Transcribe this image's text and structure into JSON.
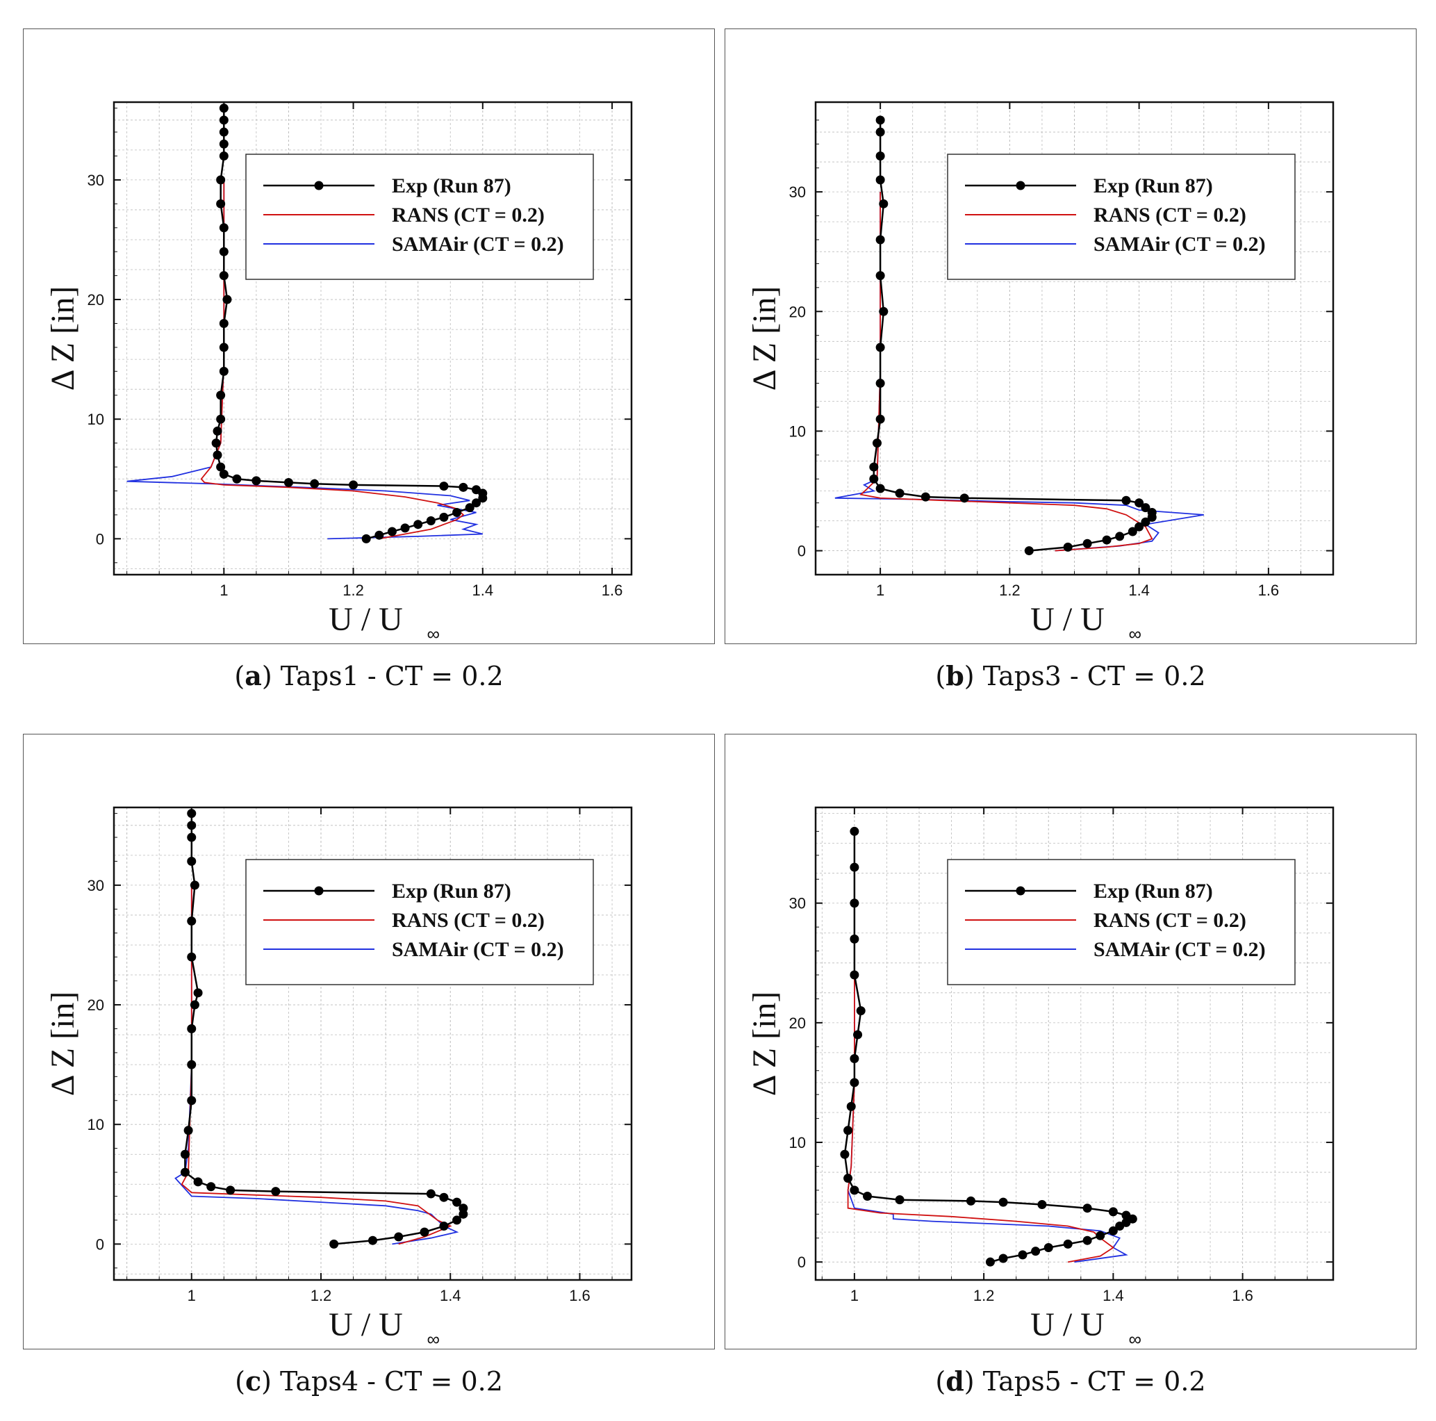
{
  "chart_data": [
    {
      "type": "line",
      "panel_letter": "a",
      "caption_text": "Taps1 - CT = 0.2",
      "xlabel": "U / U",
      "xlabel_sub": "∞",
      "ylabel": "Δ Z [in]",
      "xlim": [
        0.83,
        1.63
      ],
      "ylim": [
        -3,
        36.5
      ],
      "xticks": [
        1,
        1.2,
        1.4,
        1.6
      ],
      "xtick_labels": [
        "1",
        "1.2",
        "1.4",
        "1.6"
      ],
      "yticks": [
        0,
        10,
        20,
        30
      ],
      "ytick_labels": [
        "0",
        "10",
        "20",
        "30"
      ],
      "grid": true,
      "legend_position": "top-right",
      "series": [
        {
          "name": "Exp (Run 87)",
          "color": "#000000",
          "marker": "circle",
          "x": [
            1.22,
            1.24,
            1.26,
            1.28,
            1.3,
            1.32,
            1.34,
            1.36,
            1.38,
            1.39,
            1.4,
            1.4,
            1.39,
            1.37,
            1.34,
            1.2,
            1.14,
            1.1,
            1.05,
            1.02,
            1.0,
            0.995,
            0.99,
            0.988,
            0.99,
            0.995,
            0.995,
            1.0,
            1.0,
            1.0,
            1.005,
            1.0,
            1.0,
            1.0,
            0.995,
            0.995,
            1.0,
            1.0,
            1.0,
            1.0,
            1.0
          ],
          "y": [
            0,
            0.3,
            0.6,
            0.9,
            1.2,
            1.5,
            1.8,
            2.2,
            2.6,
            3.0,
            3.4,
            3.8,
            4.1,
            4.3,
            4.4,
            4.5,
            4.6,
            4.7,
            4.85,
            5.0,
            5.4,
            6.0,
            7.0,
            8.0,
            9.0,
            10.0,
            12.0,
            14.0,
            16.0,
            18.0,
            20.0,
            22.0,
            24.0,
            26.0,
            28.0,
            30.0,
            32.0,
            33.0,
            34.0,
            35.0,
            36.0
          ]
        },
        {
          "name": "RANS (CT = 0.2)",
          "color": "#d01010",
          "marker": "none",
          "x": [
            1.24,
            1.28,
            1.32,
            1.34,
            1.36,
            1.37,
            1.36,
            1.33,
            1.28,
            1.2,
            1.1,
            1.0,
            0.97,
            0.965,
            0.98,
            0.995,
            1.0,
            1.0
          ],
          "y": [
            0,
            0.4,
            0.8,
            1.2,
            1.6,
            2.0,
            2.5,
            3.0,
            3.5,
            4.0,
            4.3,
            4.5,
            4.7,
            5.0,
            6.0,
            8.0,
            15.0,
            30.0
          ]
        },
        {
          "name": "SAMAir (CT = 0.2)",
          "color": "#2030e0",
          "marker": "none",
          "x": [
            1.16,
            1.3,
            1.4,
            1.37,
            1.39,
            1.35,
            1.39,
            1.33,
            1.38,
            1.35,
            1.25,
            1.12,
            0.98,
            0.85,
            0.92,
            0.98,
            0.995,
            1.0,
            1.0
          ],
          "y": [
            0,
            0.2,
            0.4,
            0.8,
            1.2,
            1.6,
            2.2,
            2.8,
            3.2,
            3.6,
            4.0,
            4.3,
            4.6,
            4.8,
            5.2,
            6.0,
            8.0,
            15.0,
            30.0
          ]
        }
      ]
    },
    {
      "type": "line",
      "panel_letter": "b",
      "caption_text": "Taps3 - CT = 0.2",
      "xlabel": "U / U",
      "xlabel_sub": "∞",
      "ylabel": "Δ Z [in]",
      "xlim": [
        0.9,
        1.7
      ],
      "ylim": [
        -2,
        37.5
      ],
      "xticks": [
        1,
        1.2,
        1.4,
        1.6
      ],
      "xtick_labels": [
        "1",
        "1.2",
        "1.4",
        "1.6"
      ],
      "yticks": [
        0,
        10,
        20,
        30
      ],
      "ytick_labels": [
        "0",
        "10",
        "20",
        "30"
      ],
      "grid": true,
      "legend_position": "top-right",
      "series": [
        {
          "name": "Exp (Run 87)",
          "color": "#000000",
          "marker": "circle",
          "x": [
            1.23,
            1.29,
            1.32,
            1.35,
            1.37,
            1.39,
            1.4,
            1.41,
            1.42,
            1.42,
            1.41,
            1.4,
            1.38,
            1.13,
            1.07,
            1.03,
            1.0,
            0.99,
            0.99,
            0.995,
            1.0,
            1.0,
            1.0,
            1.005,
            1.0,
            1.0,
            1.005,
            1.0,
            1.0,
            1.0,
            1.0
          ],
          "y": [
            0,
            0.3,
            0.6,
            0.9,
            1.2,
            1.6,
            2.0,
            2.4,
            2.8,
            3.2,
            3.6,
            4.0,
            4.2,
            4.4,
            4.5,
            4.8,
            5.2,
            6.0,
            7.0,
            9.0,
            11.0,
            14.0,
            17.0,
            20.0,
            23.0,
            26.0,
            29.0,
            31.0,
            33.0,
            35.0,
            36.0
          ]
        },
        {
          "name": "RANS (CT = 0.2)",
          "color": "#d01010",
          "marker": "none",
          "x": [
            1.27,
            1.35,
            1.4,
            1.42,
            1.41,
            1.38,
            1.35,
            1.3,
            1.2,
            1.1,
            1.0,
            0.97,
            0.98,
            0.995,
            1.0,
            1.0
          ],
          "y": [
            0,
            0.3,
            0.6,
            1.0,
            2.0,
            3.0,
            3.5,
            3.8,
            4.0,
            4.2,
            4.4,
            4.7,
            5.2,
            6.0,
            15.0,
            30.0
          ]
        },
        {
          "name": "SAMAir (CT = 0.2)",
          "color": "#2030e0",
          "marker": "none",
          "x": [
            1.27,
            1.37,
            1.42,
            1.43,
            1.41,
            1.5,
            1.4,
            1.38,
            1.3,
            1.2,
            1.05,
            0.93,
            0.99,
            0.975,
            0.995,
            1.0,
            1.0
          ],
          "y": [
            0,
            0.4,
            0.8,
            1.5,
            2.2,
            3.0,
            3.4,
            3.8,
            4.0,
            4.1,
            4.3,
            4.4,
            5.0,
            5.5,
            6.0,
            15.0,
            30.0
          ]
        }
      ]
    },
    {
      "type": "line",
      "panel_letter": "c",
      "caption_text": "Taps4 - CT = 0.2",
      "xlabel": "U / U",
      "xlabel_sub": "∞",
      "ylabel": "Δ Z [in]",
      "xlim": [
        0.88,
        1.68
      ],
      "ylim": [
        -3,
        36.5
      ],
      "xticks": [
        1,
        1.2,
        1.4,
        1.6
      ],
      "xtick_labels": [
        "1",
        "1.2",
        "1.4",
        "1.6"
      ],
      "yticks": [
        0,
        10,
        20,
        30
      ],
      "ytick_labels": [
        "0",
        "10",
        "20",
        "30"
      ],
      "grid": true,
      "legend_position": "top-right",
      "series": [
        {
          "name": "Exp (Run 87)",
          "color": "#000000",
          "marker": "circle",
          "x": [
            1.22,
            1.28,
            1.32,
            1.36,
            1.39,
            1.41,
            1.42,
            1.42,
            1.41,
            1.39,
            1.37,
            1.13,
            1.06,
            1.03,
            1.01,
            0.99,
            0.99,
            0.995,
            1.0,
            1.0,
            1.0,
            1.005,
            1.01,
            1.0,
            1.0,
            1.005,
            1.0,
            1.0,
            1.0,
            1.0
          ],
          "y": [
            0,
            0.3,
            0.6,
            1.0,
            1.5,
            2.0,
            2.5,
            3.0,
            3.5,
            3.9,
            4.2,
            4.4,
            4.5,
            4.8,
            5.2,
            6.0,
            7.5,
            9.5,
            12.0,
            15.0,
            18.0,
            20.0,
            21.0,
            24.0,
            27.0,
            30.0,
            32.0,
            34.0,
            35.0,
            36.0
          ]
        },
        {
          "name": "RANS (CT = 0.2)",
          "color": "#d01010",
          "marker": "none",
          "x": [
            1.32,
            1.36,
            1.4,
            1.38,
            1.36,
            1.35,
            1.3,
            1.2,
            1.1,
            1.0,
            0.985,
            0.995,
            1.0,
            1.0
          ],
          "y": [
            0,
            0.6,
            1.5,
            2.0,
            2.8,
            3.2,
            3.6,
            3.9,
            4.1,
            4.3,
            5.0,
            6.0,
            15.0,
            30.0
          ]
        },
        {
          "name": "SAMAir (CT = 0.2)",
          "color": "#2030e0",
          "marker": "none",
          "x": [
            1.31,
            1.37,
            1.41,
            1.39,
            1.38,
            1.37,
            1.35,
            1.3,
            1.2,
            1.1,
            1.0,
            0.975,
            0.99,
            0.995,
            1.0,
            1.0
          ],
          "y": [
            0,
            0.5,
            1.0,
            1.5,
            2.0,
            2.5,
            2.8,
            3.2,
            3.5,
            3.8,
            4.0,
            5.5,
            6.0,
            8.0,
            15.0,
            30.0
          ]
        }
      ]
    },
    {
      "type": "line",
      "panel_letter": "d",
      "caption_text": "Taps5 - CT = 0.2",
      "xlabel": "U / U",
      "xlabel_sub": "∞",
      "ylabel": "Δ Z [in]",
      "xlim": [
        0.94,
        1.74
      ],
      "ylim": [
        -1.5,
        38
      ],
      "xticks": [
        1,
        1.2,
        1.4,
        1.6
      ],
      "xtick_labels": [
        "1",
        "1.2",
        "1.4",
        "1.6"
      ],
      "yticks": [
        0,
        10,
        20,
        30
      ],
      "ytick_labels": [
        "0",
        "10",
        "20",
        "30"
      ],
      "grid": true,
      "legend_position": "top-right",
      "series": [
        {
          "name": "Exp (Run 87)",
          "color": "#000000",
          "marker": "circle",
          "x": [
            1.21,
            1.23,
            1.26,
            1.28,
            1.3,
            1.33,
            1.36,
            1.38,
            1.4,
            1.41,
            1.42,
            1.43,
            1.42,
            1.4,
            1.36,
            1.29,
            1.23,
            1.18,
            1.07,
            1.02,
            1.0,
            0.99,
            0.985,
            0.99,
            0.995,
            1.0,
            1.0,
            1.005,
            1.01,
            1.0,
            1.0,
            1.0,
            1.0,
            1.0
          ],
          "y": [
            0,
            0.3,
            0.6,
            0.9,
            1.2,
            1.5,
            1.8,
            2.2,
            2.6,
            3.0,
            3.3,
            3.6,
            3.9,
            4.2,
            4.5,
            4.8,
            5.0,
            5.1,
            5.2,
            5.5,
            6.0,
            7.0,
            9.0,
            11.0,
            13.0,
            15.0,
            17.0,
            19.0,
            21.0,
            24.0,
            27.0,
            30.0,
            33.0,
            36.0
          ]
        },
        {
          "name": "RANS (CT = 0.2)",
          "color": "#d01010",
          "marker": "none",
          "x": [
            1.33,
            1.38,
            1.4,
            1.38,
            1.37,
            1.33,
            1.25,
            1.15,
            1.04,
            0.99,
            0.99,
            0.995,
            1.0,
            1.0
          ],
          "y": [
            0,
            0.5,
            1.2,
            2.0,
            2.5,
            3.0,
            3.4,
            3.8,
            4.1,
            4.5,
            6.0,
            8.0,
            15.0,
            30.0
          ]
        },
        {
          "name": "SAMAir (CT = 0.2)",
          "color": "#2030e0",
          "marker": "none",
          "x": [
            1.34,
            1.42,
            1.4,
            1.41,
            1.38,
            1.3,
            1.12,
            1.06,
            1.06,
            1.0,
            0.99,
            0.995,
            1.0,
            1.0
          ],
          "y": [
            0,
            0.6,
            1.2,
            2.0,
            2.6,
            3.0,
            3.4,
            3.6,
            4.0,
            4.5,
            6.0,
            8.0,
            15.0,
            30.0
          ]
        }
      ]
    }
  ]
}
